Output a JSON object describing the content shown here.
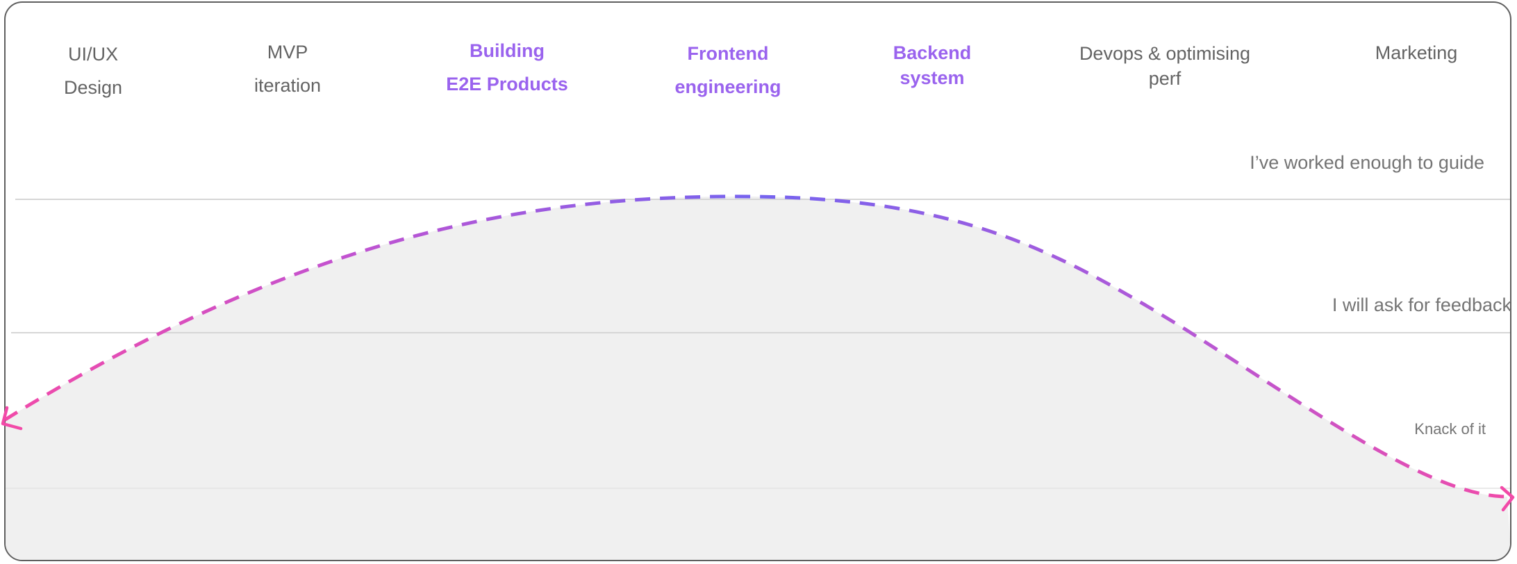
{
  "skills": [
    {
      "line1": "UI/UX",
      "line2": "Design",
      "highlight": false
    },
    {
      "line1": "MVP",
      "line2": "iteration",
      "highlight": false
    },
    {
      "line1": "Building",
      "line2": "E2E Products",
      "highlight": true
    },
    {
      "line1": "Frontend",
      "line2": "engineering",
      "highlight": true
    },
    {
      "line1": "Backend",
      "line2": "system",
      "highlight": true
    },
    {
      "line1": "Devops & optimising",
      "line2": "perf",
      "highlight": false
    },
    {
      "line1": "Marketing",
      "line2": "",
      "highlight": false
    }
  ],
  "levels": {
    "top": "I’ve worked enough to guide",
    "middle": "I will ask for feedback",
    "bottom": "Knack of it"
  },
  "colors": {
    "curve_start": "#f24aa8",
    "curve_peak": "#7563ef",
    "highlight_text": "#9a63ee",
    "area_fill": "#f0f0f0",
    "gridline": "#d6d6d6"
  }
}
